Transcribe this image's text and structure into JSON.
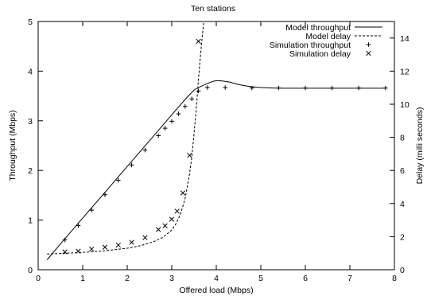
{
  "chart_data": {
    "type": "line",
    "title": "Ten stations",
    "xlabel": "Offered load (Mbps)",
    "ylabel": "Throughput (Mbps)",
    "y2label": "Delay (milli seconds)",
    "xlim": [
      0,
      8
    ],
    "ylim": [
      0,
      5
    ],
    "y2lim": [
      0,
      15
    ],
    "xticks": [
      "0",
      "1",
      "2",
      "3",
      "4",
      "5",
      "6",
      "7",
      "8"
    ],
    "yticks": [
      "0",
      "1",
      "2",
      "3",
      "4",
      "5"
    ],
    "y2ticks": [
      "0",
      "2",
      "4",
      "6",
      "8",
      "10",
      "12",
      "14"
    ],
    "grid": false,
    "legend_position": "top-right",
    "series": [
      {
        "name": "Model throughput",
        "axis": "left",
        "style": "solid-line",
        "x": [
          0.2,
          0.5,
          1.0,
          1.5,
          2.0,
          2.5,
          3.0,
          3.3,
          3.5,
          3.65,
          3.75,
          3.85,
          3.95,
          4.05,
          4.15,
          4.3,
          4.5,
          4.75,
          5.0,
          5.25,
          5.5,
          6.0,
          7.0,
          7.8
        ],
        "y": [
          0.2,
          0.52,
          1.04,
          1.56,
          2.08,
          2.6,
          3.12,
          3.43,
          3.62,
          3.69,
          3.73,
          3.77,
          3.8,
          3.81,
          3.8,
          3.78,
          3.73,
          3.69,
          3.67,
          3.66,
          3.655,
          3.655,
          3.655,
          3.655
        ]
      },
      {
        "name": "Model delay",
        "axis": "right",
        "style": "dashed-line",
        "x": [
          0.2,
          0.5,
          1.0,
          1.5,
          2.0,
          2.3,
          2.6,
          2.8,
          3.0,
          3.1,
          3.2,
          3.3,
          3.4,
          3.45,
          3.5,
          3.55,
          3.6,
          3.63,
          3.66,
          3.7,
          3.72
        ],
        "y": [
          0.95,
          0.98,
          1.05,
          1.15,
          1.3,
          1.45,
          1.7,
          1.95,
          2.4,
          2.8,
          3.4,
          4.3,
          5.8,
          6.8,
          8.2,
          9.7,
          11.5,
          12.5,
          13.4,
          14.5,
          15.0
        ]
      },
      {
        "name": "Simulation throughput",
        "axis": "left",
        "style": "plus-marker",
        "x": [
          0.6,
          0.9,
          1.2,
          1.5,
          1.8,
          2.1,
          2.4,
          2.7,
          2.85,
          3.0,
          3.15,
          3.3,
          3.45,
          3.6,
          3.8,
          4.2,
          4.8,
          5.4,
          6.0,
          6.6,
          7.2,
          7.8
        ],
        "y": [
          0.6,
          0.89,
          1.2,
          1.51,
          1.8,
          2.11,
          2.41,
          2.7,
          2.85,
          2.99,
          3.14,
          3.29,
          3.44,
          3.6,
          3.67,
          3.67,
          3.66,
          3.66,
          3.66,
          3.66,
          3.66,
          3.66
        ]
      },
      {
        "name": "Simulation delay",
        "axis": "right",
        "style": "x-marker",
        "x": [
          0.6,
          0.9,
          1.2,
          1.5,
          1.8,
          2.1,
          2.4,
          2.7,
          2.85,
          3.0,
          3.12,
          3.25,
          3.4,
          3.6
        ],
        "y": [
          1.08,
          1.12,
          1.25,
          1.36,
          1.49,
          1.66,
          1.94,
          2.43,
          2.66,
          3.05,
          3.54,
          4.64,
          6.91,
          13.8
        ]
      }
    ]
  }
}
